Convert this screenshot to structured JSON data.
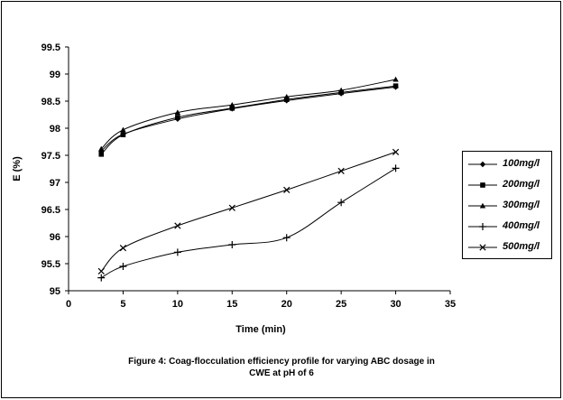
{
  "chart_data": {
    "type": "line",
    "title": "",
    "xlabel": "Time (min)",
    "ylabel": "E (%)",
    "xlim": [
      0,
      35
    ],
    "ylim": [
      95,
      99.5
    ],
    "xticks": [
      0,
      5,
      10,
      15,
      20,
      25,
      30,
      35
    ],
    "yticks": [
      95,
      95.5,
      96,
      96.5,
      97,
      97.5,
      98,
      98.5,
      99,
      99.5
    ],
    "grid": false,
    "legend_position": "right",
    "x": [
      3,
      5,
      10,
      15,
      20,
      25,
      30
    ],
    "series": [
      {
        "name": "100mg/l",
        "marker": "diamond",
        "values": [
          97.58,
          97.89,
          98.17,
          98.36,
          98.51,
          98.64,
          98.76
        ]
      },
      {
        "name": "200mg/l",
        "marker": "square",
        "values": [
          97.52,
          97.88,
          98.2,
          98.37,
          98.53,
          98.66,
          98.78
        ]
      },
      {
        "name": "300mg/l",
        "marker": "triangle",
        "values": [
          97.62,
          97.97,
          98.29,
          98.43,
          98.58,
          98.7,
          98.9
        ]
      },
      {
        "name": "400mg/l",
        "marker": "plus",
        "values": [
          95.24,
          95.45,
          95.71,
          95.85,
          95.98,
          96.63,
          97.26
        ]
      },
      {
        "name": "500mg/l",
        "marker": "x",
        "values": [
          95.36,
          95.79,
          96.2,
          96.53,
          96.86,
          97.21,
          97.56
        ]
      }
    ]
  },
  "caption": {
    "line1": "Figure 4: Coag-flocculation efficiency profile for varying ABC dosage in",
    "line2": "CWE at pH of 6"
  }
}
